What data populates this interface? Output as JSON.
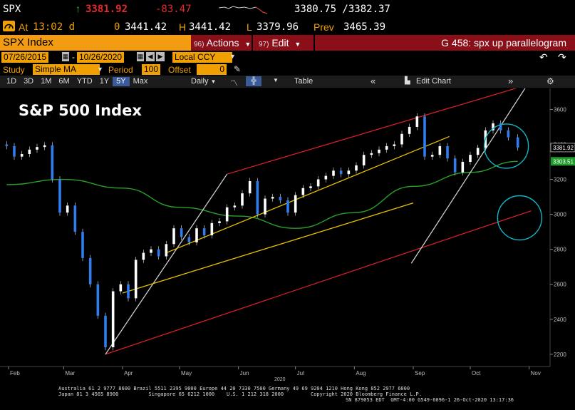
{
  "quote": {
    "ticker": "SPX",
    "arrow": "↑",
    "last": "3381.92",
    "change": "-83.47",
    "bid_ask": "3380.75 /3382.37",
    "at_label": "At",
    "time": "13:02 d",
    "open_label": "0",
    "open": "3441.42",
    "high_label": "H",
    "high": "3441.42",
    "low_label": "L",
    "low": "3379.96",
    "prev_label": "Prev",
    "prev": "3465.39"
  },
  "toolbar": {
    "security": "SPX Index",
    "actions_num": "96)",
    "actions": "Actions",
    "edit_num": "97)",
    "edit": "Edit",
    "title": "G 458: spx up parallelogram"
  },
  "range": {
    "start": "07/26/2015",
    "end": "10/26/2020",
    "currency": "Local CCY"
  },
  "study": {
    "label": "Study",
    "type": "Simple MA",
    "period_label": "Period",
    "period": "100",
    "offset_label": "Offset",
    "offset": "0"
  },
  "periods": [
    "1D",
    "3D",
    "1M",
    "6M",
    "YTD",
    "1Y",
    "5Y",
    "Max"
  ],
  "selected_period": "5Y",
  "frequency": "Daily",
  "table_label": "Table",
  "edit_chart_label": "Edit Chart",
  "chart_data": {
    "type": "line",
    "title": "S&P 500 Index",
    "x_ticks": [
      "Feb",
      "Mar",
      "Apr",
      "May",
      "Jun",
      "Jul",
      "Aug",
      "Sep",
      "Oct",
      "Nov"
    ],
    "year_label": "2020",
    "y_ticks": [
      2200,
      2400,
      2600,
      2800,
      3000,
      3200,
      3400,
      3600
    ],
    "ylim": [
      2130,
      3720
    ],
    "last_price_label": "3381.92",
    "ma_label": "3303.51",
    "price_series": {
      "x": [
        "Jan 31",
        "Feb 4",
        "Feb 8",
        "Feb 12",
        "Feb 16",
        "Feb 20",
        "Feb 24",
        "Feb 28",
        "Mar 3",
        "Mar 7",
        "Mar 11",
        "Mar 15",
        "Mar 19",
        "Mar 23",
        "Mar 27",
        "Mar 31",
        "Apr 4",
        "Apr 8",
        "Apr 12",
        "Apr 16",
        "Apr 20",
        "Apr 24",
        "Apr 28",
        "May 2",
        "May 6",
        "May 10",
        "May 14",
        "May 18",
        "May 22",
        "May 26",
        "May 30",
        "Jun 3",
        "Jun 7",
        "Jun 11",
        "Jun 15",
        "Jun 19",
        "Jun 23",
        "Jun 27",
        "Jul 1",
        "Jul 5",
        "Jul 9",
        "Jul 13",
        "Jul 17",
        "Jul 21",
        "Jul 25",
        "Jul 29",
        "Aug 2",
        "Aug 6",
        "Aug 10",
        "Aug 14",
        "Aug 18",
        "Aug 22",
        "Aug 26",
        "Aug 30",
        "Sep 3",
        "Sep 7",
        "Sep 11",
        "Sep 15",
        "Sep 19",
        "Sep 23",
        "Sep 27",
        "Oct 1",
        "Oct 5",
        "Oct 9",
        "Oct 13",
        "Oct 17",
        "Oct 21",
        "Oct 26"
      ],
      "close": [
        3390,
        3330,
        3345,
        3370,
        3385,
        3395,
        3200,
        3010,
        3050,
        2900,
        2750,
        2600,
        2420,
        2240,
        2560,
        2600,
        2520,
        2740,
        2780,
        2800,
        2760,
        2830,
        2920,
        2870,
        2840,
        2920,
        2880,
        2950,
        2960,
        3040,
        3050,
        3120,
        3190,
        3000,
        3090,
        3100,
        3080,
        3010,
        3110,
        3150,
        3160,
        3200,
        3220,
        3250,
        3230,
        3250,
        3280,
        3340,
        3350,
        3370,
        3390,
        3400,
        3460,
        3500,
        3560,
        3330,
        3340,
        3390,
        3320,
        3240,
        3300,
        3340,
        3380,
        3480,
        3520,
        3480,
        3440,
        3382
      ]
    },
    "ma_series": {
      "x": [
        "Jan 31",
        "Mar 1",
        "Apr 1",
        "May 1",
        "Jun 1",
        "Jul 1",
        "Aug 1",
        "Sep 1",
        "Oct 1",
        "Oct 26"
      ],
      "values": [
        3170,
        3200,
        3150,
        3040,
        2990,
        2920,
        3010,
        3160,
        3240,
        3303
      ]
    },
    "lines": [
      {
        "name": "upper-red",
        "color": "#d0202a",
        "from": [
          "May 26",
          3230
        ],
        "to": [
          "Oct 31",
          3740
        ]
      },
      {
        "name": "lower-red",
        "color": "#d0202a",
        "from": [
          "Mar 23",
          2200
        ],
        "to": [
          "Nov 2",
          3020
        ]
      },
      {
        "name": "white-1",
        "color": "#cccccc",
        "from": [
          "Mar 23",
          2200
        ],
        "to": [
          "May 26",
          3230
        ]
      },
      {
        "name": "white-2",
        "color": "#cccccc",
        "from": [
          "Aug 31",
          2720
        ],
        "to": [
          "Oct 31",
          3740
        ]
      },
      {
        "name": "yellow-1",
        "color": "#e6c200",
        "from": [
          "Apr 1",
          2550
        ],
        "to": [
          "Sep 1",
          3065
        ]
      },
      {
        "name": "yellow-2",
        "color": "#e6c200",
        "from": [
          "Apr 24",
          2780
        ],
        "to": [
          "Sep 20",
          3445
        ]
      }
    ],
    "circles": [
      {
        "name": "circle-upper",
        "color": "#12b5c4",
        "center": [
          "Oct 20",
          3390
        ],
        "r": "small"
      },
      {
        "name": "circle-lower",
        "color": "#12b5c4",
        "center": [
          "Oct 27",
          2980
        ],
        "r": "small"
      }
    ],
    "colors": {
      "up": "#ffffff",
      "down": "#2f7df0",
      "ma": "#2aa02a",
      "bg": "#000000",
      "grid": "#222222"
    }
  },
  "footer": {
    "line1": "Australia 61 2 9777 8600 Brazil 5511 2395 9000 Europe 44 20 7330 7500 Germany 49 69 9204 1210 Hong Kong 852 2977 6000",
    "line2": "Japan 81 3 4565 8900          Singapore 65 6212 1000    U.S. 1 212 318 2000         Copyright 2020 Bloomberg Finance L.P.",
    "line3": "SN 879053 EDT  GMT-4:00 G549-6096-1 26-Oct-2020 13:17:36"
  },
  "colors": {
    "accent": "#f0a000",
    "down_red": "#e22b2b",
    "red_bar": "#8a0f18"
  }
}
